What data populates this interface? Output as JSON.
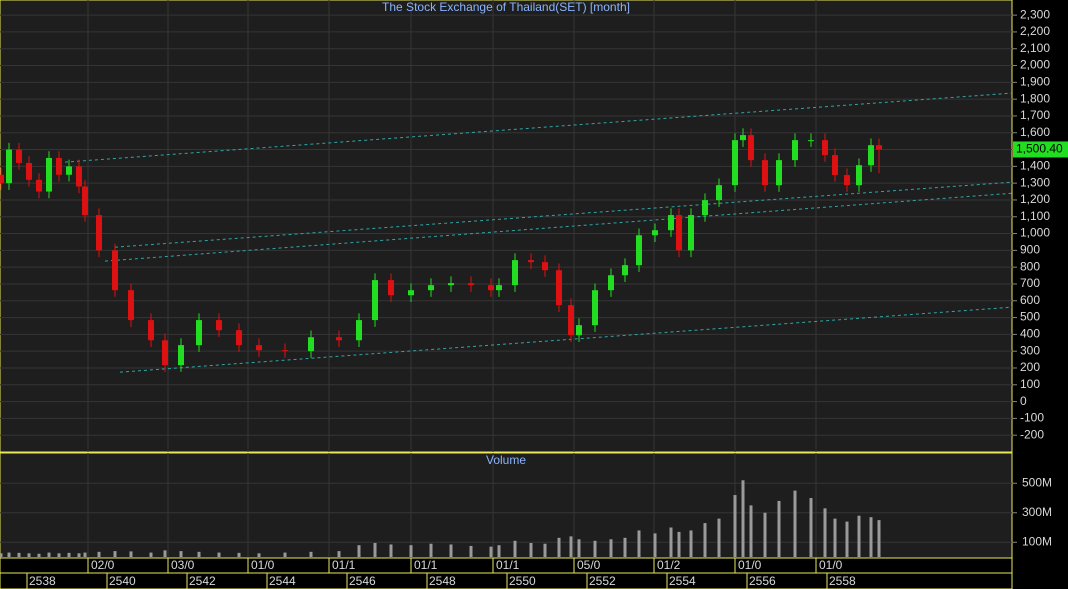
{
  "chart_data": {
    "type": "candlestick",
    "title": "The Stock Exchange of Thailand(SET) [month]",
    "volume_title": "Volume",
    "up_color": "#22dd22",
    "down_color": "#dd1111",
    "volume_color": "#9a9a9a",
    "trend_color": "#2fa6a6",
    "grid": true,
    "x": [
      2537.35,
      2537.55,
      2537.8,
      2538.05,
      2538.3,
      2538.55,
      2538.8,
      2539.05,
      2539.3,
      2539.45,
      2539.8,
      2540.2,
      2540.6,
      2541.1,
      2541.45,
      2541.85,
      2542.3,
      2542.8,
      2543.3,
      2543.8,
      2544.45,
      2545.1,
      2545.8,
      2546.3,
      2546.7,
      2547.1,
      2547.6,
      2548.1,
      2548.6,
      2549.1,
      2549.6,
      2549.8,
      2550.2,
      2550.6,
      2550.95,
      2551.3,
      2551.6,
      2551.8,
      2552.2,
      2552.6,
      2552.95,
      2553.3,
      2553.7,
      2554.1,
      2554.3,
      2554.6,
      2554.95,
      2555.3,
      2555.7,
      2555.9,
      2556.1,
      2556.45,
      2556.8,
      2557.2,
      2557.6,
      2557.95,
      2558.2,
      2558.5,
      2558.8,
      2559.1,
      2559.3
    ],
    "open": [
      1350,
      1300,
      1500,
      1420,
      1320,
      1250,
      1450,
      1350,
      1400,
      1280,
      1110,
      900,
      663,
      485,
      365,
      217,
      336,
      485,
      425,
      336,
      306,
      300,
      383,
      365,
      485,
      723,
      633,
      663,
      693,
      705,
      693,
      663,
      693,
      842,
      830,
      782,
      574,
      395,
      455,
      663,
      752,
      812,
      990,
      1020,
      1110,
      900,
      1110,
      1199,
      1288,
      1556,
      1586,
      1437,
      1288,
      1437,
      1556,
      1556,
      1467,
      1348,
      1288,
      1407,
      1526
    ],
    "high": [
      1390,
      1540,
      1540,
      1460,
      1360,
      1490,
      1490,
      1440,
      1440,
      1320,
      1150,
      940,
      703,
      525,
      405,
      376,
      525,
      525,
      465,
      376,
      346,
      423,
      423,
      525,
      763,
      763,
      703,
      733,
      745,
      745,
      733,
      733,
      882,
      882,
      870,
      822,
      614,
      495,
      703,
      792,
      852,
      1030,
      1060,
      1150,
      1150,
      1150,
      1239,
      1328,
      1596,
      1626,
      1626,
      1477,
      1477,
      1596,
      1596,
      1596,
      1507,
      1388,
      1447,
      1566,
      1566
    ],
    "low": [
      1260,
      1260,
      1380,
      1280,
      1210,
      1210,
      1310,
      1310,
      1240,
      1070,
      860,
      623,
      445,
      325,
      177,
      177,
      296,
      385,
      296,
      266,
      260,
      260,
      325,
      325,
      445,
      593,
      593,
      623,
      653,
      653,
      623,
      623,
      653,
      790,
      742,
      534,
      355,
      355,
      415,
      623,
      712,
      772,
      950,
      980,
      860,
      860,
      1070,
      1159,
      1248,
      1516,
      1397,
      1248,
      1248,
      1397,
      1516,
      1427,
      1308,
      1248,
      1248,
      1367,
      1360
    ],
    "close": [
      1300,
      1500,
      1420,
      1320,
      1250,
      1450,
      1350,
      1400,
      1280,
      1110,
      900,
      663,
      485,
      365,
      217,
      336,
      485,
      425,
      336,
      306,
      300,
      383,
      365,
      485,
      723,
      633,
      663,
      693,
      705,
      693,
      663,
      693,
      842,
      830,
      782,
      574,
      395,
      455,
      663,
      752,
      812,
      990,
      1020,
      1110,
      900,
      1110,
      1199,
      1288,
      1556,
      1586,
      1437,
      1288,
      1437,
      1556,
      1556,
      1467,
      1348,
      1288,
      1407,
      1526,
      1500.4
    ],
    "last_label": "1,500.40",
    "volume": [
      25,
      30,
      28,
      25,
      22,
      30,
      25,
      28,
      25,
      30,
      35,
      40,
      38,
      30,
      45,
      40,
      35,
      30,
      28,
      25,
      30,
      35,
      40,
      80,
      95,
      85,
      80,
      90,
      85,
      75,
      70,
      80,
      110,
      95,
      90,
      130,
      140,
      120,
      110,
      120,
      130,
      180,
      160,
      200,
      170,
      180,
      230,
      260,
      420,
      520,
      350,
      300,
      380,
      450,
      400,
      330,
      260,
      240,
      280,
      270,
      250
    ],
    "xlim": [
      2537.325,
      2562.625
    ],
    "ylim": [
      -300,
      2390
    ],
    "y2lim": [
      0,
      705
    ],
    "yticks": [
      {
        "value": 2300,
        "label": "2,300"
      },
      {
        "value": 2200,
        "label": "2,200"
      },
      {
        "value": 2100,
        "label": "2,100"
      },
      {
        "value": 2000,
        "label": "2,000"
      },
      {
        "value": 1900,
        "label": "1,900"
      },
      {
        "value": 1800,
        "label": "1,800"
      },
      {
        "value": 1700,
        "label": "1,700"
      },
      {
        "value": 1600,
        "label": "1,600"
      },
      {
        "value": 1500,
        "label": "1,500"
      },
      {
        "value": 1400,
        "label": "1,400"
      },
      {
        "value": 1300,
        "label": "1,300"
      },
      {
        "value": 1200,
        "label": "1,200"
      },
      {
        "value": 1100,
        "label": "1,100"
      },
      {
        "value": 1000,
        "label": "1,000"
      },
      900,
      800,
      700,
      600,
      500,
      400,
      300,
      200,
      100,
      0,
      -100,
      -200
    ],
    "y2ticks": [
      {
        "value": 500,
        "label": "500M"
      },
      {
        "value": 300,
        "label": "300M"
      },
      {
        "value": 100,
        "label": "100M"
      }
    ],
    "xticks": [
      2538,
      2540,
      2542,
      2544,
      2546,
      2548,
      2550,
      2552,
      2554,
      2556,
      2558
    ],
    "xticks_top": [
      {
        "value": 2539.525,
        "label": "02/0"
      },
      {
        "value": 2541.525,
        "label": "03/0"
      },
      {
        "value": 2543.525,
        "label": "01/0"
      },
      {
        "value": 2545.55,
        "label": "01/1"
      },
      {
        "value": 2547.6,
        "label": "01/1"
      },
      {
        "value": 2549.65,
        "label": "01/1"
      },
      {
        "value": 2551.675,
        "label": "05/0"
      },
      {
        "value": 2553.675,
        "label": "01/2"
      },
      {
        "value": 2555.7,
        "label": "01/0"
      },
      {
        "value": 2557.725,
        "label": "01/0"
      }
    ],
    "trendlines": [
      {
        "x": [
          2538.95,
          2562.625
        ],
        "y": [
          1425,
          1836
        ]
      },
      {
        "x": [
          2540.2,
          2562.625
        ],
        "y": [
          919,
          1306
        ]
      },
      {
        "x": [
          2539.95,
          2562.625
        ],
        "y": [
          836,
          1240
        ]
      },
      {
        "x": [
          2540.325,
          2562.625
        ],
        "y": [
          175,
          562
        ]
      }
    ]
  }
}
